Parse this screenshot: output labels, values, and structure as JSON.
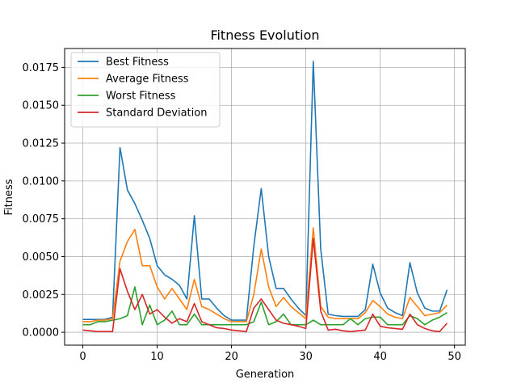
{
  "chart_data": {
    "type": "line",
    "title": "Fitness Evolution",
    "xlabel": "Generation",
    "ylabel": "Fitness",
    "xlim": [
      -2.45,
      51.45
    ],
    "ylim": [
      -0.00085,
      0.01875
    ],
    "xticks": [
      0,
      10,
      20,
      30,
      40,
      50
    ],
    "xtick_labels": [
      "0",
      "10",
      "20",
      "30",
      "40",
      "50"
    ],
    "yticks": [
      0.0,
      0.0025,
      0.005,
      0.0075,
      0.01,
      0.0125,
      0.015,
      0.0175
    ],
    "ytick_labels": [
      "0.0000",
      "0.0025",
      "0.0050",
      "0.0075",
      "0.0100",
      "0.0125",
      "0.0150",
      "0.0175"
    ],
    "grid": true,
    "legend_position": "upper-left",
    "x": [
      0,
      1,
      2,
      3,
      4,
      5,
      6,
      7,
      8,
      9,
      10,
      11,
      12,
      13,
      14,
      15,
      16,
      17,
      18,
      19,
      20,
      21,
      22,
      23,
      24,
      25,
      26,
      27,
      28,
      29,
      30,
      31,
      32,
      33,
      34,
      35,
      36,
      37,
      38,
      39,
      40,
      41,
      42,
      43,
      44,
      45,
      46,
      47,
      48,
      49
    ],
    "series": [
      {
        "name": "Best Fitness",
        "color": "#1f77b4",
        "values": [
          0.00085,
          0.00085,
          0.00085,
          0.00085,
          0.001,
          0.0122,
          0.0094,
          0.0085,
          0.0074,
          0.0062,
          0.0044,
          0.0038,
          0.0035,
          0.0031,
          0.0022,
          0.0077,
          0.0022,
          0.0022,
          0.0016,
          0.0011,
          0.0008,
          0.0008,
          0.0008,
          0.0057,
          0.0095,
          0.005,
          0.0029,
          0.0029,
          0.0022,
          0.0016,
          0.0011,
          0.0179,
          0.0055,
          0.0012,
          0.0011,
          0.00105,
          0.00105,
          0.00105,
          0.0015,
          0.0045,
          0.0026,
          0.0016,
          0.0013,
          0.0011,
          0.0046,
          0.0026,
          0.0016,
          0.0014,
          0.0014,
          0.0028
        ]
      },
      {
        "name": "Average Fitness",
        "color": "#ff7f0e",
        "values": [
          0.0007,
          0.0007,
          0.0008,
          0.0008,
          0.0009,
          0.0047,
          0.006,
          0.0068,
          0.0044,
          0.0044,
          0.003,
          0.0022,
          0.0029,
          0.0022,
          0.0015,
          0.0035,
          0.0017,
          0.0015,
          0.0012,
          0.0009,
          0.0007,
          0.0007,
          0.0007,
          0.0025,
          0.0055,
          0.003,
          0.0017,
          0.0023,
          0.0017,
          0.0013,
          0.0009,
          0.0069,
          0.0017,
          0.001,
          0.0009,
          0.0009,
          0.0009,
          0.0009,
          0.0013,
          0.0021,
          0.0017,
          0.0012,
          0.001,
          0.0009,
          0.0023,
          0.0017,
          0.0011,
          0.0012,
          0.0013,
          0.0018
        ]
      },
      {
        "name": "Worst Fitness",
        "color": "#2ca02c",
        "values": [
          0.0005,
          0.0005,
          0.0007,
          0.0007,
          0.0008,
          0.0009,
          0.0011,
          0.003,
          0.0005,
          0.0018,
          0.0005,
          0.0008,
          0.0014,
          0.0005,
          0.0005,
          0.0012,
          0.0005,
          0.0005,
          0.0005,
          0.0005,
          0.0005,
          0.0005,
          0.0005,
          0.0007,
          0.002,
          0.0005,
          0.0007,
          0.0012,
          0.0005,
          0.0005,
          0.0005,
          0.0008,
          0.0005,
          0.0005,
          0.0005,
          0.0005,
          0.0009,
          0.0005,
          0.0009,
          0.001,
          0.001,
          0.0005,
          0.0005,
          0.0005,
          0.0011,
          0.0009,
          0.0005,
          0.0008,
          0.001,
          0.0013
        ]
      },
      {
        "name": "Standard Deviation",
        "color": "#d62728",
        "values": [
          0.00015,
          0.0001,
          5e-05,
          5e-05,
          5e-05,
          0.0042,
          0.0027,
          0.0015,
          0.0025,
          0.0012,
          0.0015,
          0.001,
          0.0006,
          0.0009,
          0.0007,
          0.0019,
          0.0007,
          0.0005,
          0.0003,
          0.00025,
          0.00015,
          0.0001,
          5e-05,
          0.0016,
          0.0022,
          0.0015,
          0.0008,
          0.0006,
          0.0005,
          0.0004,
          0.00025,
          0.0062,
          0.0014,
          0.00015,
          0.0002,
          0.0001,
          5e-05,
          0.0001,
          0.00015,
          0.0012,
          0.0004,
          0.0003,
          0.00025,
          0.0002,
          0.0012,
          0.0005,
          0.00025,
          0.0001,
          5e-05,
          0.0006
        ]
      }
    ]
  }
}
